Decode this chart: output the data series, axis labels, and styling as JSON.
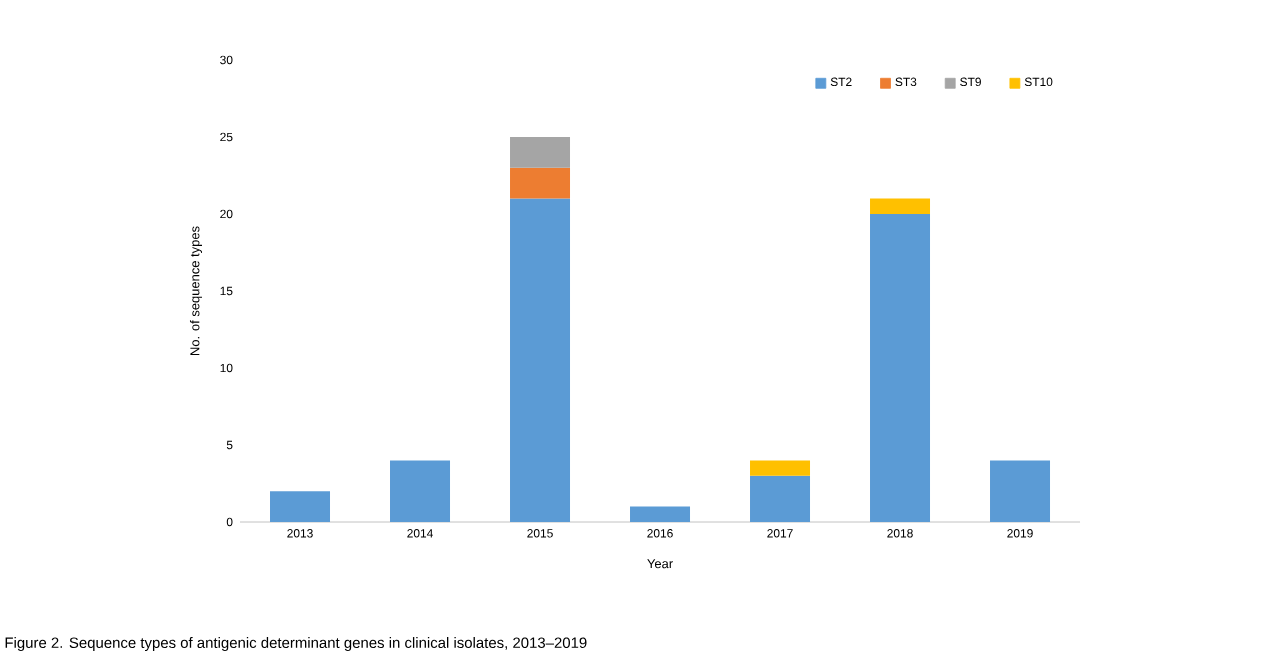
{
  "chart_data": {
    "type": "bar",
    "stacked": true,
    "xlabel": "Year",
    "ylabel": "No. of sequence types",
    "categories": [
      "2013",
      "2014",
      "2015",
      "2016",
      "2017",
      "2018",
      "2019"
    ],
    "series": [
      {
        "name": "ST2",
        "color": "#5b9bd5",
        "values": [
          2,
          4,
          21,
          1,
          3,
          20,
          4
        ]
      },
      {
        "name": "ST3",
        "color": "#ed7d31",
        "values": [
          null,
          null,
          2,
          null,
          null,
          null,
          null
        ]
      },
      {
        "name": "ST9",
        "color": "#a5a5a5",
        "values": [
          null,
          null,
          2,
          null,
          null,
          null,
          null
        ]
      },
      {
        "name": "ST10",
        "color": "#ffc000",
        "values": [
          null,
          null,
          null,
          null,
          1,
          1,
          null
        ]
      }
    ],
    "ylim": [
      0,
      30
    ],
    "yticks": [
      0,
      5,
      10,
      15,
      20,
      25,
      30
    ],
    "grid": false,
    "legend": "top right",
    "annotations": [
      "Figure 2. Sequence types of antigenic determinant genes in clinical isolates, 2013–2019"
    ]
  }
}
